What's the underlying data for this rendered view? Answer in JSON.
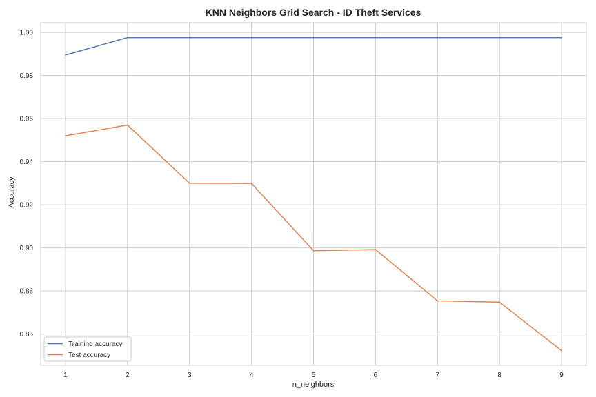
{
  "chart_data": {
    "type": "line",
    "title": "KNN Neighbors Grid Search - ID Theft Services",
    "xlabel": "n_neighbors",
    "ylabel": "Accuracy",
    "x": [
      1,
      2,
      3,
      4,
      5,
      6,
      7,
      8,
      9
    ],
    "xlim": [
      0.6,
      9.4
    ],
    "ylim": [
      0.8455,
      1.0045
    ],
    "xticks": [
      "1",
      "2",
      "3",
      "4",
      "5",
      "6",
      "7",
      "8",
      "9"
    ],
    "yticks": [
      "0.86",
      "0.88",
      "0.90",
      "0.92",
      "0.94",
      "0.96",
      "0.98",
      "1.00"
    ],
    "grid": true,
    "legend_position": "lower-left",
    "series": [
      {
        "name": "Training accuracy",
        "color": "#4c72b0",
        "values": [
          0.9895,
          0.9976,
          0.9976,
          0.9976,
          0.9976,
          0.9976,
          0.9976,
          0.9976,
          0.9976
        ]
      },
      {
        "name": "Test accuracy",
        "color": "#dd8452",
        "values": [
          0.952,
          0.957,
          0.93,
          0.9299,
          0.8987,
          0.8992,
          0.8754,
          0.8748,
          0.8523
        ]
      }
    ]
  }
}
